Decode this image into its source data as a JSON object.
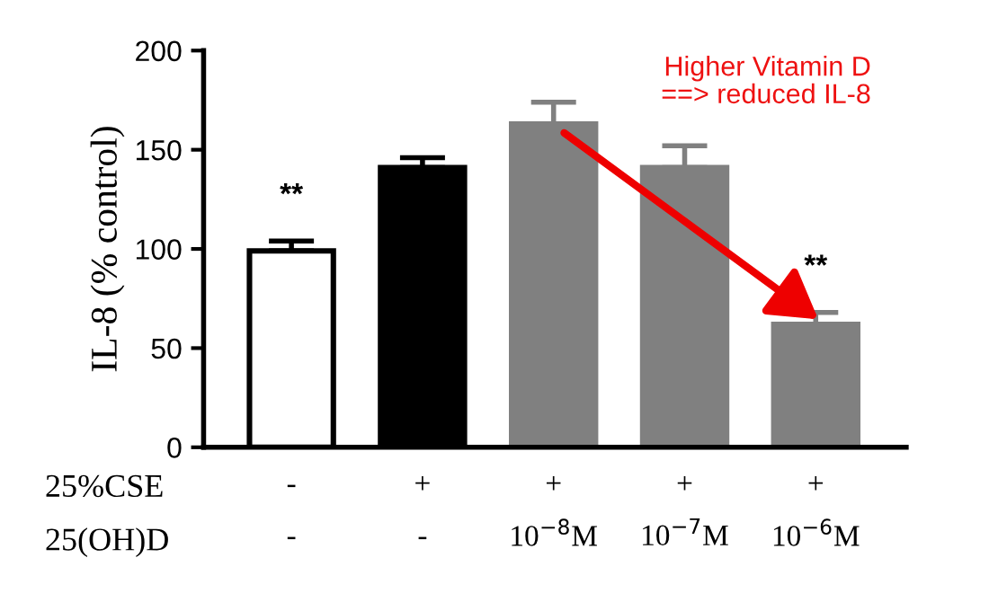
{
  "chart_data": {
    "type": "bar",
    "ylabel": "IL-8 (% control)",
    "categories": [
      "-\n-",
      "+\n-",
      "+\n10$^{−8}$M",
      "+\n10$^{−7}$M",
      "+\n10$^{−6}$M"
    ],
    "values": [
      99,
      141,
      163,
      141,
      62
    ],
    "colors": [
      "#ffffff",
      "#000000",
      "#808080",
      "#808080",
      "#808080"
    ],
    "errors": [
      [
        99,
        104
      ],
      [
        141,
        146
      ],
      [
        163,
        174
      ],
      [
        141,
        152
      ],
      [
        62,
        68
      ]
    ],
    "ylim": [
      0,
      200
    ],
    "yticks": [
      0,
      50,
      100,
      150,
      200
    ],
    "grid": false,
    "legend": false,
    "annotations": [
      "25%CSE",
      "25(OH)D",
      "Higher Vitamin D\n       ==> reduced IL-8",
      "**",
      "**"
    ]
  }
}
